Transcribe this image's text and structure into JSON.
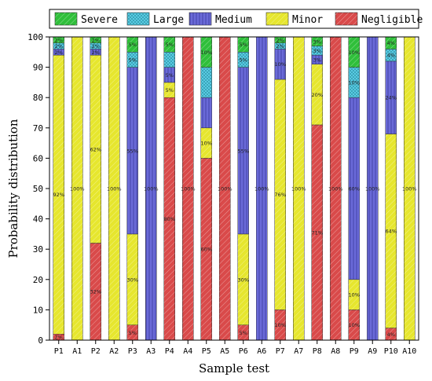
{
  "chart_data": {
    "type": "bar",
    "stacked": true,
    "ylabel": "Probability distribution",
    "xlabel": "Sample test",
    "ylim": [
      0,
      100
    ],
    "yticks": [
      0,
      10,
      20,
      30,
      40,
      50,
      60,
      70,
      80,
      90,
      100
    ],
    "legend_position": "top",
    "grid": false,
    "categories": [
      "P1",
      "A1",
      "P2",
      "A2",
      "P3",
      "A3",
      "P4",
      "A4",
      "P5",
      "A5",
      "P6",
      "A6",
      "P7",
      "A7",
      "P8",
      "A8",
      "P9",
      "A9",
      "P10",
      "A10"
    ],
    "series": [
      {
        "name": "Negligible",
        "color": "#d94a4a",
        "pattern": "hatch-diagonal",
        "values": [
          2,
          0,
          32,
          0,
          5,
          0,
          80,
          100,
          60,
          100,
          5,
          0,
          10,
          0,
          71,
          100,
          10,
          0,
          4,
          0
        ],
        "labels": [
          "2%",
          "",
          "32%",
          "",
          "5%",
          "",
          "80%",
          "100%",
          "60%",
          "100%",
          "5%",
          "",
          "10%",
          "",
          "71%",
          "100%",
          "10%",
          "",
          "4%",
          ""
        ]
      },
      {
        "name": "Minor",
        "color": "#e6e62e",
        "pattern": "hatch-diagonal",
        "values": [
          92,
          100,
          62,
          100,
          30,
          0,
          5,
          0,
          10,
          0,
          30,
          0,
          76,
          100,
          20,
          0,
          10,
          0,
          64,
          100
        ],
        "labels": [
          "92%",
          "100%",
          "62%",
          "100%",
          "30%",
          "",
          "5%",
          "",
          "10%",
          "",
          "30%",
          "",
          "76%",
          "100%",
          "20%",
          "",
          "10%",
          "",
          "64%",
          "100%"
        ]
      },
      {
        "name": "Medium",
        "color": "#6a6ad8",
        "pattern": "hatch-vertical",
        "values": [
          2,
          0,
          2,
          0,
          55,
          100,
          5,
          0,
          10,
          0,
          55,
          100,
          10,
          0,
          3,
          0,
          60,
          100,
          24,
          0
        ],
        "labels": [
          "2%",
          "",
          "2%",
          "",
          "55%",
          "100%",
          "5%",
          "",
          "",
          "",
          "55%",
          "100%",
          "10%",
          "",
          "3%",
          "",
          "60%",
          "100%",
          "24%",
          ""
        ]
      },
      {
        "name": "Large",
        "color": "#5fd3ea",
        "pattern": "crosshatch",
        "values": [
          2,
          0,
          2,
          0,
          5,
          0,
          5,
          0,
          10,
          0,
          5,
          0,
          2,
          0,
          3,
          0,
          10,
          0,
          4,
          0
        ],
        "labels": [
          "2%",
          "",
          "2%",
          "",
          "5%",
          "",
          "",
          "",
          "",
          "",
          "5%",
          "",
          "2%",
          "",
          "3%",
          "",
          "10%",
          "",
          "4%",
          ""
        ]
      },
      {
        "name": "Severe",
        "color": "#2fbf3a",
        "pattern": "hatch-diagonal",
        "values": [
          2,
          0,
          2,
          0,
          5,
          0,
          5,
          0,
          10,
          0,
          5,
          0,
          2,
          0,
          3,
          0,
          10,
          0,
          4,
          0
        ],
        "labels": [
          "2%",
          "",
          "2%",
          "",
          "5%",
          "",
          "5%",
          "",
          "10%",
          "",
          "5%",
          "",
          "2%",
          "",
          "3%",
          "",
          "10%",
          "",
          "4%",
          ""
        ]
      }
    ],
    "legend_order": [
      "Severe",
      "Large",
      "Medium",
      "Minor",
      "Negligible"
    ]
  }
}
